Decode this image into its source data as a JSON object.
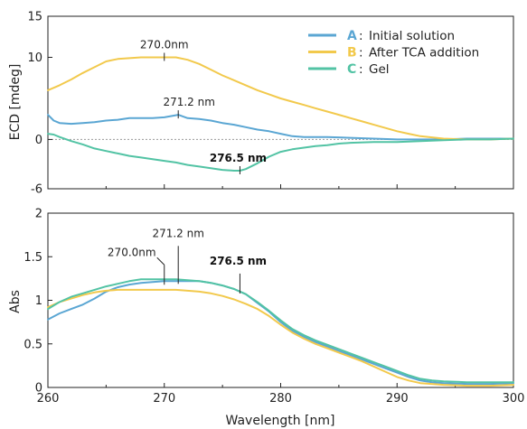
{
  "chart_data": [
    {
      "type": "line",
      "xlabel": "",
      "ylabel": "ECD [mdeg]",
      "xlim": [
        260,
        300
      ],
      "ylim": [
        -6,
        15
      ],
      "y_tick_labels": [
        "15",
        "10",
        "0",
        "-6"
      ],
      "y_tick_values": [
        15,
        10,
        0,
        -6
      ],
      "zero_line": "dashed",
      "grid": false,
      "legend": {
        "placement": "top-right",
        "entries": [
          {
            "key": "A",
            "sep": ":",
            "label": "Initial solution",
            "color": "#5aa6d3"
          },
          {
            "key": "B",
            "sep": ":",
            "label": "After TCA addition",
            "color": "#f2c94c"
          },
          {
            "key": "C",
            "sep": ":",
            "label": "Gel",
            "color": "#52c3a4"
          }
        ]
      },
      "annotations": [
        {
          "text": "270.0nm",
          "x": 270.0,
          "y": 10.0,
          "bold": false
        },
        {
          "text": "271.2 nm",
          "x": 271.2,
          "y": 3.0,
          "bold": false
        },
        {
          "text": "276.5 nm",
          "x": 276.5,
          "y": -3.8,
          "bold": true
        }
      ],
      "series": [
        {
          "key": "A",
          "color": "#5aa6d3",
          "x": [
            260,
            260.5,
            261,
            262,
            263,
            264,
            265,
            266,
            267,
            268,
            269,
            270,
            271.2,
            272,
            273,
            274,
            275,
            276,
            277,
            278,
            279,
            280,
            281,
            282,
            284,
            286,
            288,
            290,
            292,
            294,
            296,
            298,
            300
          ],
          "y": [
            3.0,
            2.3,
            2.0,
            1.9,
            2.0,
            2.1,
            2.3,
            2.4,
            2.6,
            2.6,
            2.6,
            2.7,
            3.0,
            2.6,
            2.5,
            2.3,
            2.0,
            1.8,
            1.5,
            1.2,
            1.0,
            0.7,
            0.4,
            0.3,
            0.3,
            0.2,
            0.1,
            0.0,
            0.0,
            0.0,
            0.1,
            0.1,
            0.1
          ]
        },
        {
          "key": "B",
          "color": "#f2c94c",
          "x": [
            260,
            261,
            262,
            263,
            264,
            265,
            266,
            267,
            268,
            269,
            270,
            271,
            272,
            273,
            274,
            275,
            276,
            277,
            278,
            279,
            280,
            281,
            282,
            283,
            284,
            285,
            286,
            287,
            288,
            289,
            290,
            291,
            292,
            294,
            296,
            298,
            300
          ],
          "y": [
            6.0,
            6.6,
            7.3,
            8.1,
            8.8,
            9.5,
            9.8,
            9.9,
            10.0,
            10.0,
            10.0,
            10.0,
            9.7,
            9.2,
            8.5,
            7.8,
            7.2,
            6.6,
            6.0,
            5.5,
            5.0,
            4.6,
            4.2,
            3.8,
            3.4,
            3.0,
            2.6,
            2.2,
            1.8,
            1.4,
            1.0,
            0.7,
            0.4,
            0.1,
            0.0,
            0.0,
            0.1
          ]
        },
        {
          "key": "C",
          "color": "#52c3a4",
          "x": [
            260,
            260.5,
            261,
            262,
            263,
            264,
            265,
            266,
            267,
            268,
            269,
            270,
            271,
            272,
            273,
            274,
            275,
            276,
            276.5,
            277,
            278,
            279,
            280,
            281,
            282,
            283,
            284,
            285,
            286,
            288,
            290,
            292,
            294,
            296,
            298,
            300
          ],
          "y": [
            0.7,
            0.6,
            0.3,
            -0.2,
            -0.6,
            -1.1,
            -1.4,
            -1.7,
            -2.0,
            -2.2,
            -2.4,
            -2.6,
            -2.8,
            -3.1,
            -3.3,
            -3.5,
            -3.7,
            -3.8,
            -3.8,
            -3.6,
            -2.9,
            -2.1,
            -1.5,
            -1.2,
            -1.0,
            -0.8,
            -0.7,
            -0.5,
            -0.4,
            -0.3,
            -0.3,
            -0.2,
            -0.1,
            0.0,
            0.0,
            0.1
          ]
        }
      ]
    },
    {
      "type": "line",
      "xlabel": "Wavelength [nm]",
      "ylabel": "Abs",
      "xlim": [
        260,
        300
      ],
      "ylim": [
        0,
        2
      ],
      "x_tick_labels": [
        "260",
        "270",
        "280",
        "290",
        "300"
      ],
      "x_tick_values": [
        260,
        270,
        280,
        290,
        300
      ],
      "y_tick_labels": [
        "2",
        "1.5",
        "1",
        "0.5",
        "0"
      ],
      "y_tick_values": [
        2,
        1.5,
        1,
        0.5,
        0
      ],
      "grid": false,
      "annotations": [
        {
          "text": "270.0nm",
          "x": 270.0,
          "y": 1.22,
          "bold": false
        },
        {
          "text": "271.2 nm",
          "x": 271.2,
          "y": 1.23,
          "bold": false
        },
        {
          "text": "276.5 nm",
          "x": 276.5,
          "y": 1.12,
          "bold": true
        }
      ],
      "series": [
        {
          "key": "A",
          "color": "#5aa6d3",
          "x": [
            260,
            261,
            262,
            263,
            264,
            265,
            266,
            267,
            268,
            269,
            270,
            271,
            272,
            273,
            274,
            275,
            276,
            277,
            278,
            279,
            280,
            281,
            282,
            283,
            284,
            285,
            286,
            287,
            288,
            289,
            290,
            291,
            292,
            293,
            294,
            296,
            298,
            300
          ],
          "y": [
            0.78,
            0.85,
            0.9,
            0.95,
            1.02,
            1.1,
            1.15,
            1.18,
            1.2,
            1.21,
            1.22,
            1.22,
            1.22,
            1.22,
            1.2,
            1.17,
            1.13,
            1.07,
            0.97,
            0.87,
            0.75,
            0.65,
            0.58,
            0.52,
            0.47,
            0.42,
            0.37,
            0.32,
            0.27,
            0.22,
            0.17,
            0.12,
            0.08,
            0.06,
            0.05,
            0.04,
            0.04,
            0.05
          ]
        },
        {
          "key": "B",
          "color": "#f2c94c",
          "x": [
            260,
            261,
            262,
            263,
            264,
            265,
            266,
            267,
            268,
            269,
            270,
            271,
            272,
            273,
            274,
            275,
            276,
            277,
            278,
            279,
            280,
            281,
            282,
            283,
            284,
            285,
            286,
            287,
            288,
            289,
            290,
            291,
            292,
            293,
            294,
            296,
            298,
            300
          ],
          "y": [
            0.92,
            0.98,
            1.02,
            1.06,
            1.09,
            1.11,
            1.12,
            1.12,
            1.12,
            1.12,
            1.12,
            1.12,
            1.11,
            1.1,
            1.08,
            1.05,
            1.01,
            0.96,
            0.9,
            0.82,
            0.72,
            0.63,
            0.56,
            0.5,
            0.45,
            0.4,
            0.35,
            0.3,
            0.24,
            0.18,
            0.12,
            0.08,
            0.05,
            0.04,
            0.03,
            0.02,
            0.02,
            0.03
          ]
        },
        {
          "key": "C",
          "color": "#52c3a4",
          "x": [
            260,
            261,
            262,
            263,
            264,
            265,
            266,
            267,
            268,
            269,
            270,
            271,
            272,
            273,
            274,
            275,
            276,
            277,
            278,
            279,
            280,
            281,
            282,
            283,
            284,
            285,
            286,
            287,
            288,
            289,
            290,
            291,
            292,
            293,
            294,
            296,
            298,
            300
          ],
          "y": [
            0.9,
            0.98,
            1.04,
            1.08,
            1.12,
            1.16,
            1.19,
            1.22,
            1.24,
            1.24,
            1.24,
            1.24,
            1.23,
            1.22,
            1.2,
            1.17,
            1.13,
            1.07,
            0.98,
            0.88,
            0.77,
            0.67,
            0.6,
            0.54,
            0.49,
            0.44,
            0.39,
            0.34,
            0.29,
            0.24,
            0.19,
            0.14,
            0.1,
            0.08,
            0.07,
            0.06,
            0.06,
            0.06
          ]
        }
      ]
    }
  ]
}
